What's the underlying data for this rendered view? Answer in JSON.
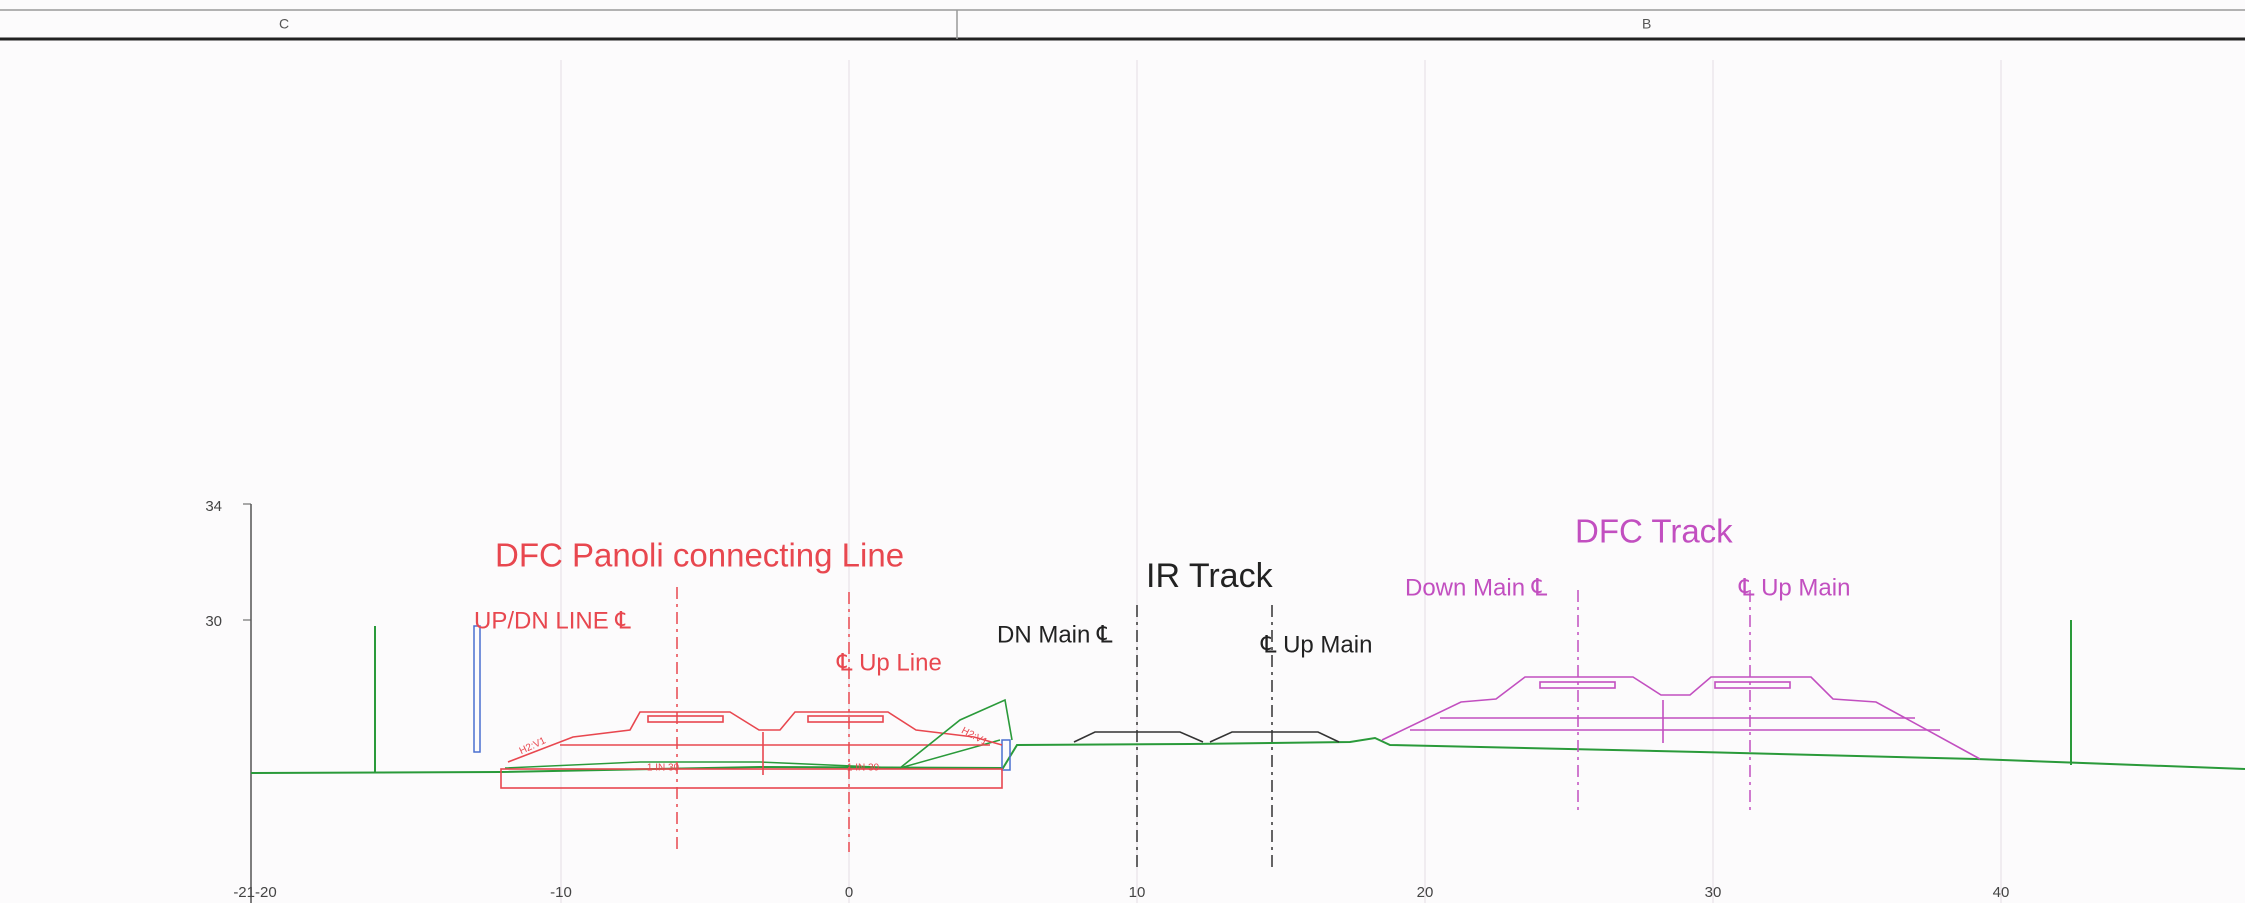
{
  "header": {
    "left_zone": "C",
    "right_zone": "B"
  },
  "axis": {
    "y_labels": [
      "34",
      "30"
    ],
    "x_labels": [
      "-21-20",
      "-10",
      "0",
      "10",
      "20",
      "30",
      "40"
    ]
  },
  "dfc_panoli": {
    "title": "DFC Panoli connecting Line",
    "left_centerline": "UP/DN LINE ℄",
    "right_centerline": "℄ Up Line",
    "slope_left": "H2:V1",
    "slope_right": "H2:V1",
    "gradient_left": "1 IN 30",
    "gradient_right": "1 IN 30"
  },
  "ir_track": {
    "title": "IR Track",
    "left_centerline": "DN Main ℄",
    "right_centerline": "℄ Up Main"
  },
  "dfc_track": {
    "title": "DFC Track",
    "left_centerline": "Down Main ℄",
    "right_centerline": "℄ Up Main"
  }
}
